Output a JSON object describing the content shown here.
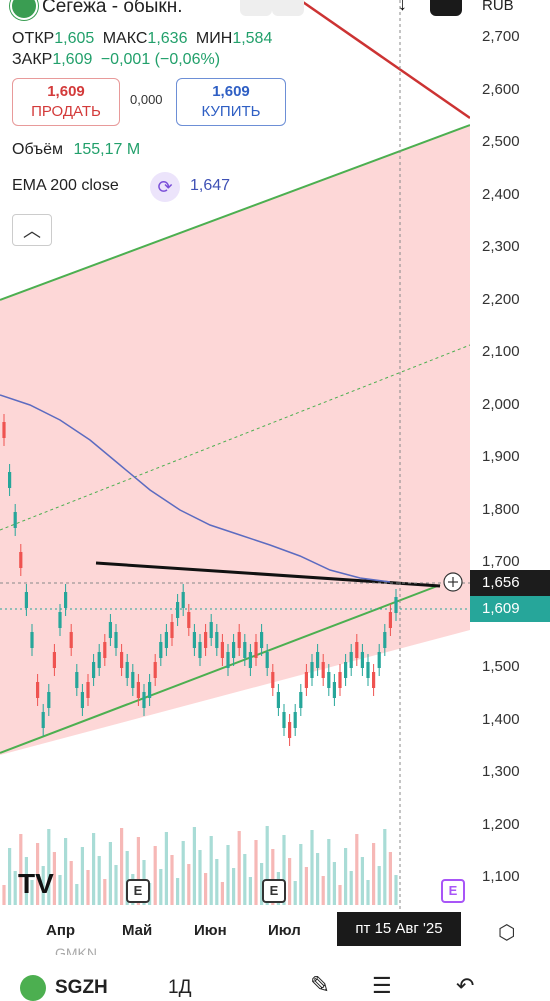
{
  "header": {
    "title": "Сегежа - обыкн.",
    "currency": "RUB",
    "open_label": "ОТКР",
    "open_value": "1,605",
    "high_label": "МАКС",
    "high_value": "1,636",
    "low_label": "МИН",
    "low_value": "1,584",
    "close_label": "ЗАКР",
    "close_value": "1,609",
    "change": "−0,001 (−0,06%)"
  },
  "trade": {
    "sell_price": "1,609",
    "sell_label": "ПРОДАТЬ",
    "spread": "0,000",
    "buy_price": "1,609",
    "buy_label": "КУПИТЬ"
  },
  "indicators": {
    "volume_label": "Объём",
    "volume_value": "155,17 M",
    "ema_label": "EMA 200 close",
    "ema_value": "1,647"
  },
  "price_axis": [
    "2,700",
    "2,600",
    "2,500",
    "2,400",
    "2,300",
    "2,200",
    "2,100",
    "2,000",
    "1,900",
    "1,800",
    "1,700",
    "1,600",
    "1,500",
    "1,400",
    "1,300",
    "1,200",
    "1,100"
  ],
  "price_tags": {
    "crosshair": "1,656",
    "last": "1,609"
  },
  "time_axis": [
    "Апр",
    "Май",
    "Июн",
    "Июл"
  ],
  "crosshair_date": "пт 15 Авг '25",
  "event_marker": "E",
  "watermark": "GMKN",
  "bottom_bar": {
    "ticker": "SGZH",
    "interval": "1Д"
  },
  "colors": {
    "up": "#26a69a",
    "down": "#ef5350",
    "channel": "#4caf50",
    "ema": "#5c6bc0",
    "zone": "#fdd7d7"
  },
  "chart_data": {
    "type": "candlestick",
    "ylim": [
      1.05,
      2.75
    ],
    "x": [
      "Апр",
      "Май",
      "Июн",
      "Июл"
    ],
    "last_close": 1.609,
    "ema_200": 1.647
  }
}
